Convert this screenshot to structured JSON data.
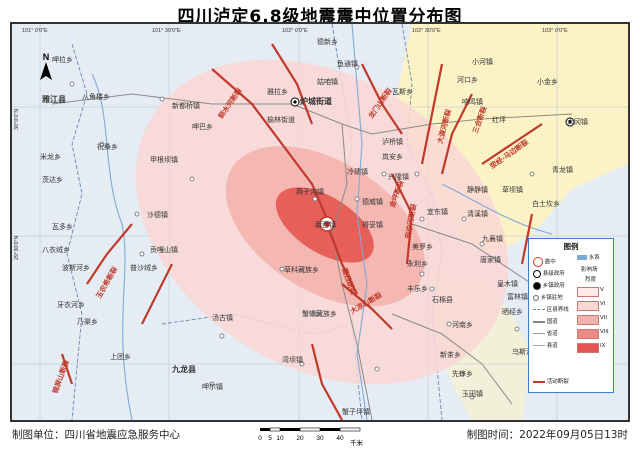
{
  "title": "四川泸定6.8级地震震中位置分布图",
  "compass_label": "N",
  "coords_top": [
    "101° 0′0″E",
    "101° 30′0″E",
    "102° 0′0″E",
    "102° 30′0″E",
    "103° 0′0″E"
  ],
  "coords_left": [
    "30°0′0″N",
    "29°30′0″N"
  ],
  "faults": [
    "鲜水河断裂",
    "龙门山断裂",
    "大渡河断裂",
    "安宁河断裂",
    "玉农希断裂",
    "磨西断裂",
    "金坪断裂",
    "荥经-马边断裂",
    "锦屏山断裂",
    "大凉山断裂",
    "三合断裂"
  ],
  "cities": [
    {
      "name": "雅江县",
      "type": "county"
    },
    {
      "name": "炉城街道",
      "type": "county"
    },
    {
      "name": "九龙县",
      "type": "county"
    },
    {
      "name": "磨西镇",
      "type": "town"
    },
    {
      "name": "得妥镇",
      "type": "town"
    },
    {
      "name": "燕子沟镇",
      "type": "town"
    },
    {
      "name": "德威镇",
      "type": "town"
    },
    {
      "name": "新都桥镇",
      "type": "town"
    },
    {
      "name": "甲根坝镇",
      "type": "town"
    },
    {
      "name": "沙德镇",
      "type": "town"
    },
    {
      "name": "贡嘎山镇",
      "type": "town"
    },
    {
      "name": "普沙绒乡",
      "type": "town"
    },
    {
      "name": "草科藏族乡",
      "type": "town"
    },
    {
      "name": "蟹螺藏族乡",
      "type": "town"
    },
    {
      "name": "湾坝镇",
      "type": "town"
    },
    {
      "name": "汤古镇",
      "type": "town"
    },
    {
      "name": "呷尔镇",
      "type": "town"
    },
    {
      "name": "上团乡",
      "type": "town"
    },
    {
      "name": "冷碛镇",
      "type": "town"
    },
    {
      "name": "兴隆镇",
      "type": "town"
    },
    {
      "name": "泸桥镇",
      "type": "town"
    },
    {
      "name": "宜东镇",
      "type": "town"
    },
    {
      "name": "清溪镇",
      "type": "town"
    },
    {
      "name": "九襄镇",
      "type": "town"
    },
    {
      "name": "唐家镇",
      "type": "town"
    },
    {
      "name": "永利乡",
      "type": "town"
    },
    {
      "name": "丰乐乡",
      "type": "town"
    },
    {
      "name": "石棉县",
      "type": "town"
    },
    {
      "name": "河南乡",
      "type": "town"
    },
    {
      "name": "新茶乡",
      "type": "town"
    },
    {
      "name": "玉田镇",
      "type": "town"
    },
    {
      "name": "先锋乡",
      "type": "town"
    },
    {
      "name": "姑咱镇",
      "type": "town"
    },
    {
      "name": "瓦斯乡",
      "type": "town"
    },
    {
      "name": "鱼通镇",
      "type": "town"
    },
    {
      "name": "雅拉乡",
      "type": "town"
    },
    {
      "name": "榆林街道",
      "type": "town"
    },
    {
      "name": "呷巴乡",
      "type": "town"
    },
    {
      "name": "祝桑乡",
      "type": "town"
    },
    {
      "name": "八角楼乡",
      "type": "town"
    },
    {
      "name": "瓦多乡",
      "type": "town"
    },
    {
      "name": "米龙乡",
      "type": "town"
    },
    {
      "name": "八衣绒乡",
      "type": "town"
    },
    {
      "name": "呷拉乡",
      "type": "town"
    },
    {
      "name": "茨达乡",
      "type": "town"
    },
    {
      "name": "波斯河乡",
      "type": "town"
    },
    {
      "name": "牙衣河乡",
      "type": "town"
    },
    {
      "name": "乃渠乡",
      "type": "town"
    },
    {
      "name": "德新乡",
      "type": "town"
    },
    {
      "name": "响鸣镇",
      "type": "town"
    },
    {
      "name": "红坪",
      "type": "town"
    },
    {
      "name": "青龙镇",
      "type": "town"
    },
    {
      "name": "草坝镇",
      "type": "town"
    },
    {
      "name": "富林镇",
      "type": "town"
    },
    {
      "name": "大冈镇",
      "type": "town"
    },
    {
      "name": "皇木镇",
      "type": "town"
    },
    {
      "name": "晒经乡",
      "type": "town"
    },
    {
      "name": "美罗乡",
      "type": "town"
    },
    {
      "name": "岚安乡",
      "type": "town"
    },
    {
      "name": "天凤乡",
      "type": "town"
    },
    {
      "name": "河口乡",
      "type": "town"
    },
    {
      "name": "小河镇",
      "type": "town"
    },
    {
      "name": "静静镇",
      "type": "town"
    },
    {
      "name": "乌斯河镇",
      "type": "town"
    },
    {
      "name": "白土坎乡",
      "type": "town"
    },
    {
      "name": "燕子沟镇",
      "type": "town"
    },
    {
      "name": "蟹子坪镇",
      "type": "town"
    },
    {
      "name": "小金乡",
      "type": "town"
    },
    {
      "name": "呷巴乡",
      "type": "town"
    }
  ],
  "legend": {
    "title": "图例",
    "items": [
      {
        "label": "震中"
      },
      {
        "label": "县级政府"
      },
      {
        "label": "乡镇政府"
      },
      {
        "label": "乡镇驻地"
      },
      {
        "label": "区县界线"
      },
      {
        "label": "国道"
      },
      {
        "label": "省道"
      },
      {
        "label": "县道"
      },
      {
        "label": "活动断裂"
      }
    ],
    "intensity_header": "影响场",
    "intensity_sub": "烈度",
    "water_label": "水系",
    "intensities": [
      {
        "label": "IX",
        "color": "#e4554f"
      },
      {
        "label": "VIII",
        "color": "#ec8b85"
      },
      {
        "label": "VII",
        "color": "#f3b2ad"
      },
      {
        "label": "VI",
        "color": "#f9d7d3"
      },
      {
        "label": "V",
        "color": "#fde9e6"
      }
    ]
  },
  "footer": {
    "left_label": "制图单位：四川省地震应急服务中心",
    "right_label": "制图时间：2022年09月05日13时"
  },
  "scale": {
    "ticks": [
      "0",
      "5",
      "10",
      "20",
      "30",
      "40"
    ],
    "unit": "千米"
  },
  "colors": {
    "intensity_ix": "#e4554f",
    "intensity_viii": "#ec8b85",
    "intensity_vii": "#f3b2ad",
    "intensity_vi": "#f9d7d3",
    "fault": "#c0392b",
    "province_yellow": "#fbf3c6",
    "map_bg": "#e6ecf4",
    "legend_border": "#3a7bd5"
  }
}
